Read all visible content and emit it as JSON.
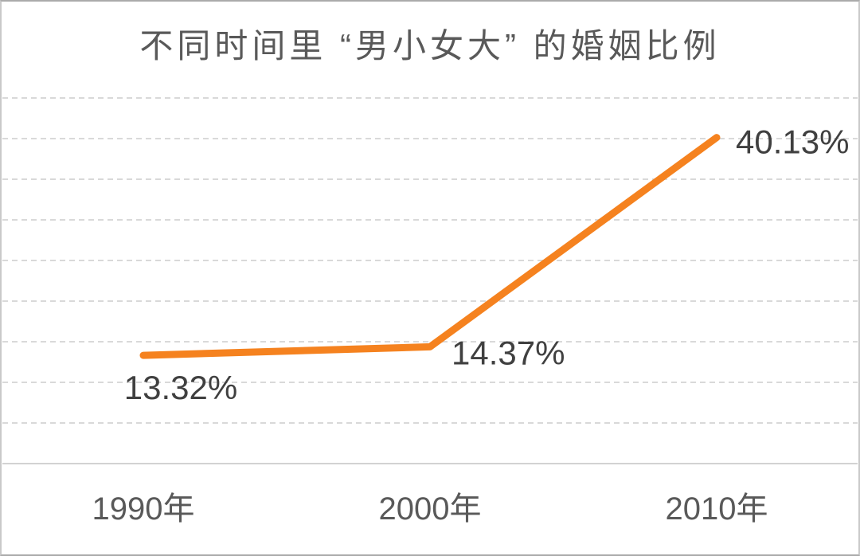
{
  "chart_data": {
    "type": "line",
    "title": "不同时间里 “男小女大” 的婚姻比例",
    "categories": [
      "1990年",
      "2000年",
      "2010年"
    ],
    "values": [
      13.32,
      14.37,
      40.13
    ],
    "data_labels": [
      "13.32%",
      "14.37%",
      "40.13%"
    ],
    "xlabel": "",
    "ylabel": "",
    "ylim": [
      0,
      45
    ],
    "grid_step": 5,
    "grid": "horizontal-dashed",
    "legend": "none",
    "y_tick_labels": "none",
    "colors": {
      "line": "#F5821F",
      "grid": "#D9D9D9",
      "axis_line": "#D2D2D2",
      "title_text": "#595959",
      "data_label_text": "#404040",
      "axis_label_text": "#595959"
    }
  }
}
